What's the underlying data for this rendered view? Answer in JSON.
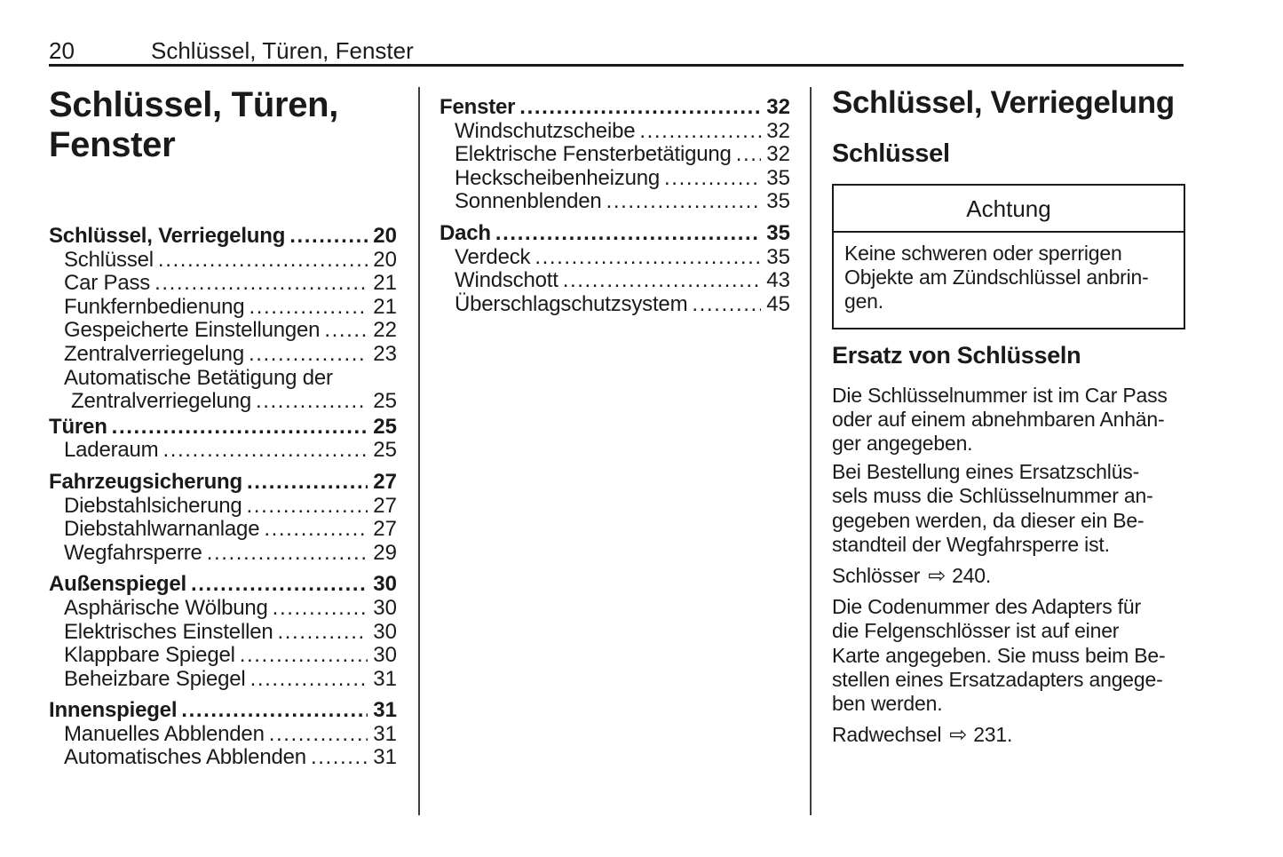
{
  "theme": {
    "ink": "#1a1a1a",
    "paper": "#ffffff",
    "divider": "#3f3f3f"
  },
  "header": {
    "page_number": "20",
    "chapter": "Schlüssel, Türen, Fenster"
  },
  "left_column": {
    "title": "Schlüssel, Türen,\nFenster",
    "toc": [
      {
        "label": "Schlüssel, Verriegelung",
        "page": "20",
        "cls": "main"
      },
      {
        "label": "Schlüssel",
        "page": "20",
        "cls": "sub"
      },
      {
        "label": "Car Pass",
        "page": "21",
        "cls": "sub"
      },
      {
        "label": "Funkfernbedienung",
        "page": "21",
        "cls": "sub"
      },
      {
        "label": "Gespeicherte Einstellungen",
        "page": "22",
        "cls": "sub"
      },
      {
        "label": "Zentralverriegelung",
        "page": "23",
        "cls": "sub"
      },
      {
        "label": "Automatische Betätigung der",
        "cls": "sub nodots"
      },
      {
        "label": "Zentralverriegelung",
        "page": "25",
        "cls": "wrap"
      },
      {
        "label": "Türen",
        "page": "25",
        "cls": "main gap-sm"
      },
      {
        "label": "Laderaum",
        "page": "25",
        "cls": "sub"
      },
      {
        "label": "Fahrzeugsicherung",
        "page": "27",
        "cls": "main gap"
      },
      {
        "label": "Diebstahlsicherung",
        "page": "27",
        "cls": "sub"
      },
      {
        "label": "Diebstahlwarnanlage",
        "page": "27",
        "cls": "sub"
      },
      {
        "label": "Wegfahrsperre",
        "page": "29",
        "cls": "sub"
      },
      {
        "label": "Außenspiegel",
        "page": "30",
        "cls": "main gap"
      },
      {
        "label": "Asphärische Wölbung",
        "page": "30",
        "cls": "sub"
      },
      {
        "label": "Elektrisches Einstellen",
        "page": "30",
        "cls": "sub"
      },
      {
        "label": "Klappbare Spiegel",
        "page": "30",
        "cls": "sub"
      },
      {
        "label": "Beheizbare Spiegel",
        "page": "31",
        "cls": "sub"
      },
      {
        "label": "Innenspiegel",
        "page": "31",
        "cls": "main gap"
      },
      {
        "label": "Manuelles Abblenden",
        "page": "31",
        "cls": "sub"
      },
      {
        "label": "Automatisches Abblenden",
        "page": "31",
        "cls": "sub"
      }
    ]
  },
  "middle_column": {
    "toc": [
      {
        "label": "Fenster",
        "page": "32",
        "cls": "main"
      },
      {
        "label": "Windschutzscheibe",
        "page": "32",
        "cls": "sub"
      },
      {
        "label": "Elektrische Fensterbetätigung",
        "page": "32",
        "cls": "sub"
      },
      {
        "label": "Heckscheibenheizung",
        "page": "35",
        "cls": "sub"
      },
      {
        "label": "Sonnenblenden",
        "page": "35",
        "cls": "sub"
      },
      {
        "label": "Dach",
        "page": "35",
        "cls": "main gap"
      },
      {
        "label": "Verdeck",
        "page": "35",
        "cls": "sub"
      },
      {
        "label": "Windschott",
        "page": "43",
        "cls": "sub"
      },
      {
        "label": "Überschlagschutzsystem",
        "page": "45",
        "cls": "sub"
      }
    ]
  },
  "right_column": {
    "section_title": "Schlüssel, Verriegelung",
    "subsection_title": "Schlüssel",
    "caution": {
      "title": "Achtung",
      "body": "Keine schweren oder sperrigen\nObjekte am Zündschlüssel anbrin-\ngen."
    },
    "keys_replacement": {
      "heading": "Ersatz von Schlüsseln",
      "para1": "Die Schlüsselnummer ist im Car Pass\noder auf einem abnehmbaren Anhän-\nger angegeben.",
      "para2": "Bei Bestellung eines Ersatzschlüs-\nsels muss die Schlüsselnummer an-\ngegeben werden, da dieser ein Be-\nstandteil der Wegfahrsperre ist.",
      "ref_locks": {
        "label": "Schlösser",
        "arrow_icon": "⇨",
        "target": "240."
      },
      "para3": "Die Codenummer des Adapters für\ndie Felgenschlösser ist auf einer\nKarte angegeben. Sie muss beim Be-\nstellen eines Ersatzadapters angege-\nben werden.",
      "ref_wheel_change": {
        "label": "Radwechsel",
        "arrow_icon": "⇨",
        "target": "231."
      }
    }
  }
}
